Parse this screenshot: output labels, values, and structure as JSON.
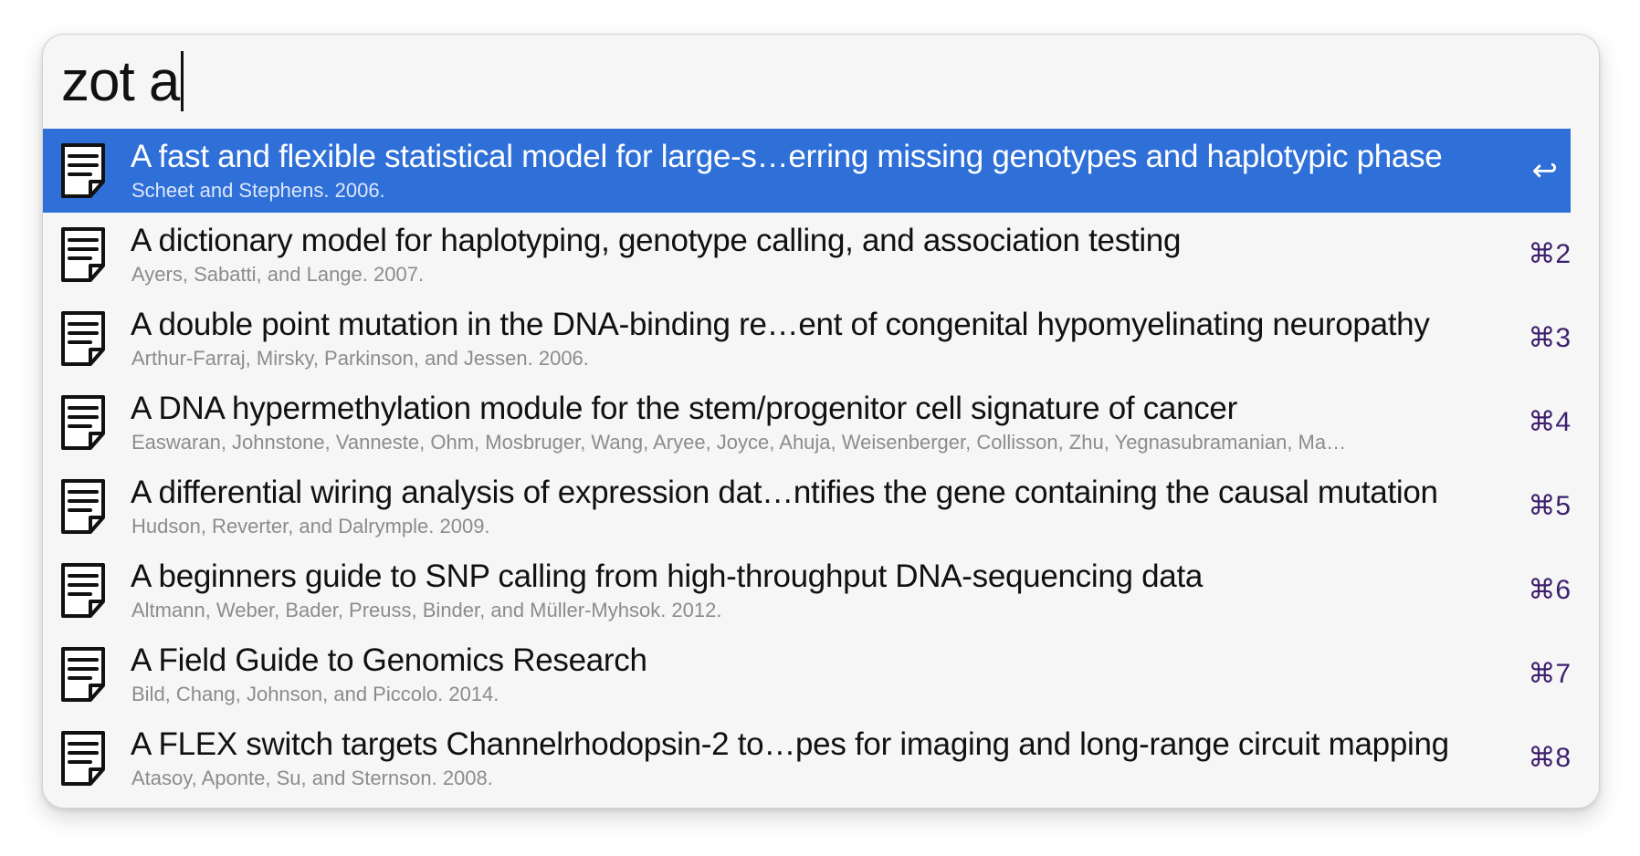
{
  "search": {
    "query": "zot a"
  },
  "results": [
    {
      "title": "A fast and flexible statistical model for large-s…erring missing genotypes and haplotypic phase",
      "subtitle": "Scheet and Stephens. 2006.",
      "shortcut": "↩",
      "selected": true
    },
    {
      "title": "A dictionary model for haplotyping, genotype calling, and association testing",
      "subtitle": "Ayers, Sabatti, and Lange. 2007.",
      "shortcut": "⌘2"
    },
    {
      "title": "A double point mutation in the DNA-binding re…ent of congenital hypomyelinating neuropathy",
      "subtitle": "Arthur-Farraj, Mirsky, Parkinson, and Jessen. 2006.",
      "shortcut": "⌘3"
    },
    {
      "title": "A DNA hypermethylation module for the stem/progenitor cell signature of cancer",
      "subtitle": "Easwaran, Johnstone, Vanneste, Ohm, Mosbruger, Wang, Aryee, Joyce, Ahuja, Weisenberger, Collisson, Zhu, Yegnasubramanian, Ma…",
      "shortcut": "⌘4"
    },
    {
      "title": "A differential wiring analysis of expression dat…ntifies the gene containing the causal mutation",
      "subtitle": "Hudson, Reverter, and Dalrymple. 2009.",
      "shortcut": "⌘5"
    },
    {
      "title": "A beginners guide to SNP calling from high-throughput DNA-sequencing data",
      "subtitle": "Altmann, Weber, Bader, Preuss, Binder, and Müller-Myhsok. 2012.",
      "shortcut": "⌘6"
    },
    {
      "title": "A Field Guide to Genomics Research",
      "subtitle": "Bild, Chang, Johnson, and Piccolo. 2014.",
      "shortcut": "⌘7"
    },
    {
      "title": "A FLEX switch targets Channelrhodopsin-2 to…pes for imaging and long-range circuit mapping",
      "subtitle": "Atasoy, Aponte, Su, and Sternson. 2008.",
      "shortcut": "⌘8"
    }
  ],
  "icons": {
    "result_icon": "document-icon",
    "selected_action_icon": "return-key-icon"
  },
  "colors": {
    "selection": "#2f6fd8",
    "shortcut_text": "#3c1f6e",
    "subtitle_text": "#8c8c8c",
    "background": "#f6f6f6"
  }
}
